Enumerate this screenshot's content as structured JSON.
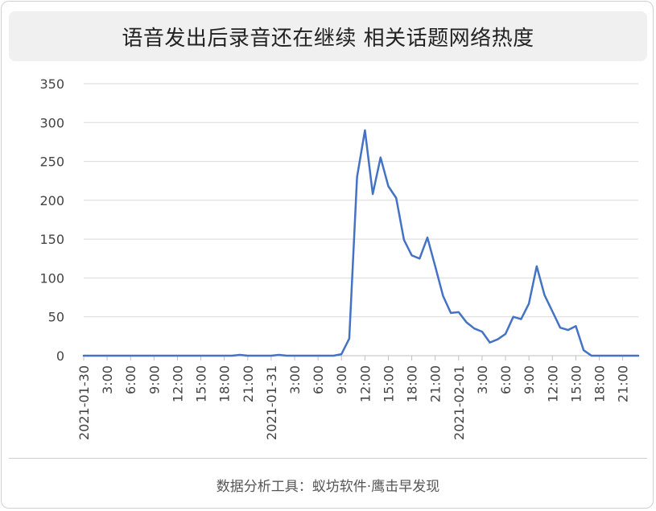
{
  "title": "语音发出后录音还在继续 相关话题网络热度",
  "footer": "数据分析工具：蚁坊软件·鹰击早发现",
  "chart_data": {
    "type": "line",
    "title": "语音发出后录音还在继续 相关话题网络热度",
    "xlabel": "",
    "ylabel": "",
    "ylim": [
      0,
      350
    ],
    "yticks": [
      0,
      50,
      100,
      150,
      200,
      250,
      300,
      350
    ],
    "grid": true,
    "legend": "none",
    "line_color": "#4472c4",
    "x_tick_labels": [
      "2021-01-30",
      "3:00",
      "6:00",
      "9:00",
      "12:00",
      "15:00",
      "18:00",
      "21:00",
      "2021-01-31",
      "3:00",
      "6:00",
      "9:00",
      "12:00",
      "15:00",
      "18:00",
      "21:00",
      "2021-02-01",
      "3:00",
      "6:00",
      "9:00",
      "12:00",
      "15:00",
      "18:00",
      "21:00"
    ],
    "points_per_hour_step": 1,
    "series": [
      {
        "values": [
          0,
          0,
          0,
          0,
          0,
          0,
          0,
          0,
          0,
          0,
          0,
          0,
          0,
          0,
          0,
          0,
          0,
          0,
          0,
          0,
          1,
          0,
          0,
          0,
          0,
          1,
          0,
          0,
          0,
          0,
          0,
          0,
          0,
          2,
          22,
          230,
          290,
          208,
          255,
          218,
          203,
          149,
          129,
          125,
          152,
          115,
          77,
          55,
          56,
          43,
          35,
          31,
          17,
          21,
          28,
          50,
          47,
          67,
          115,
          78,
          57,
          36,
          33,
          38,
          7,
          0,
          0,
          0,
          0,
          0,
          0,
          0
        ]
      }
    ]
  }
}
